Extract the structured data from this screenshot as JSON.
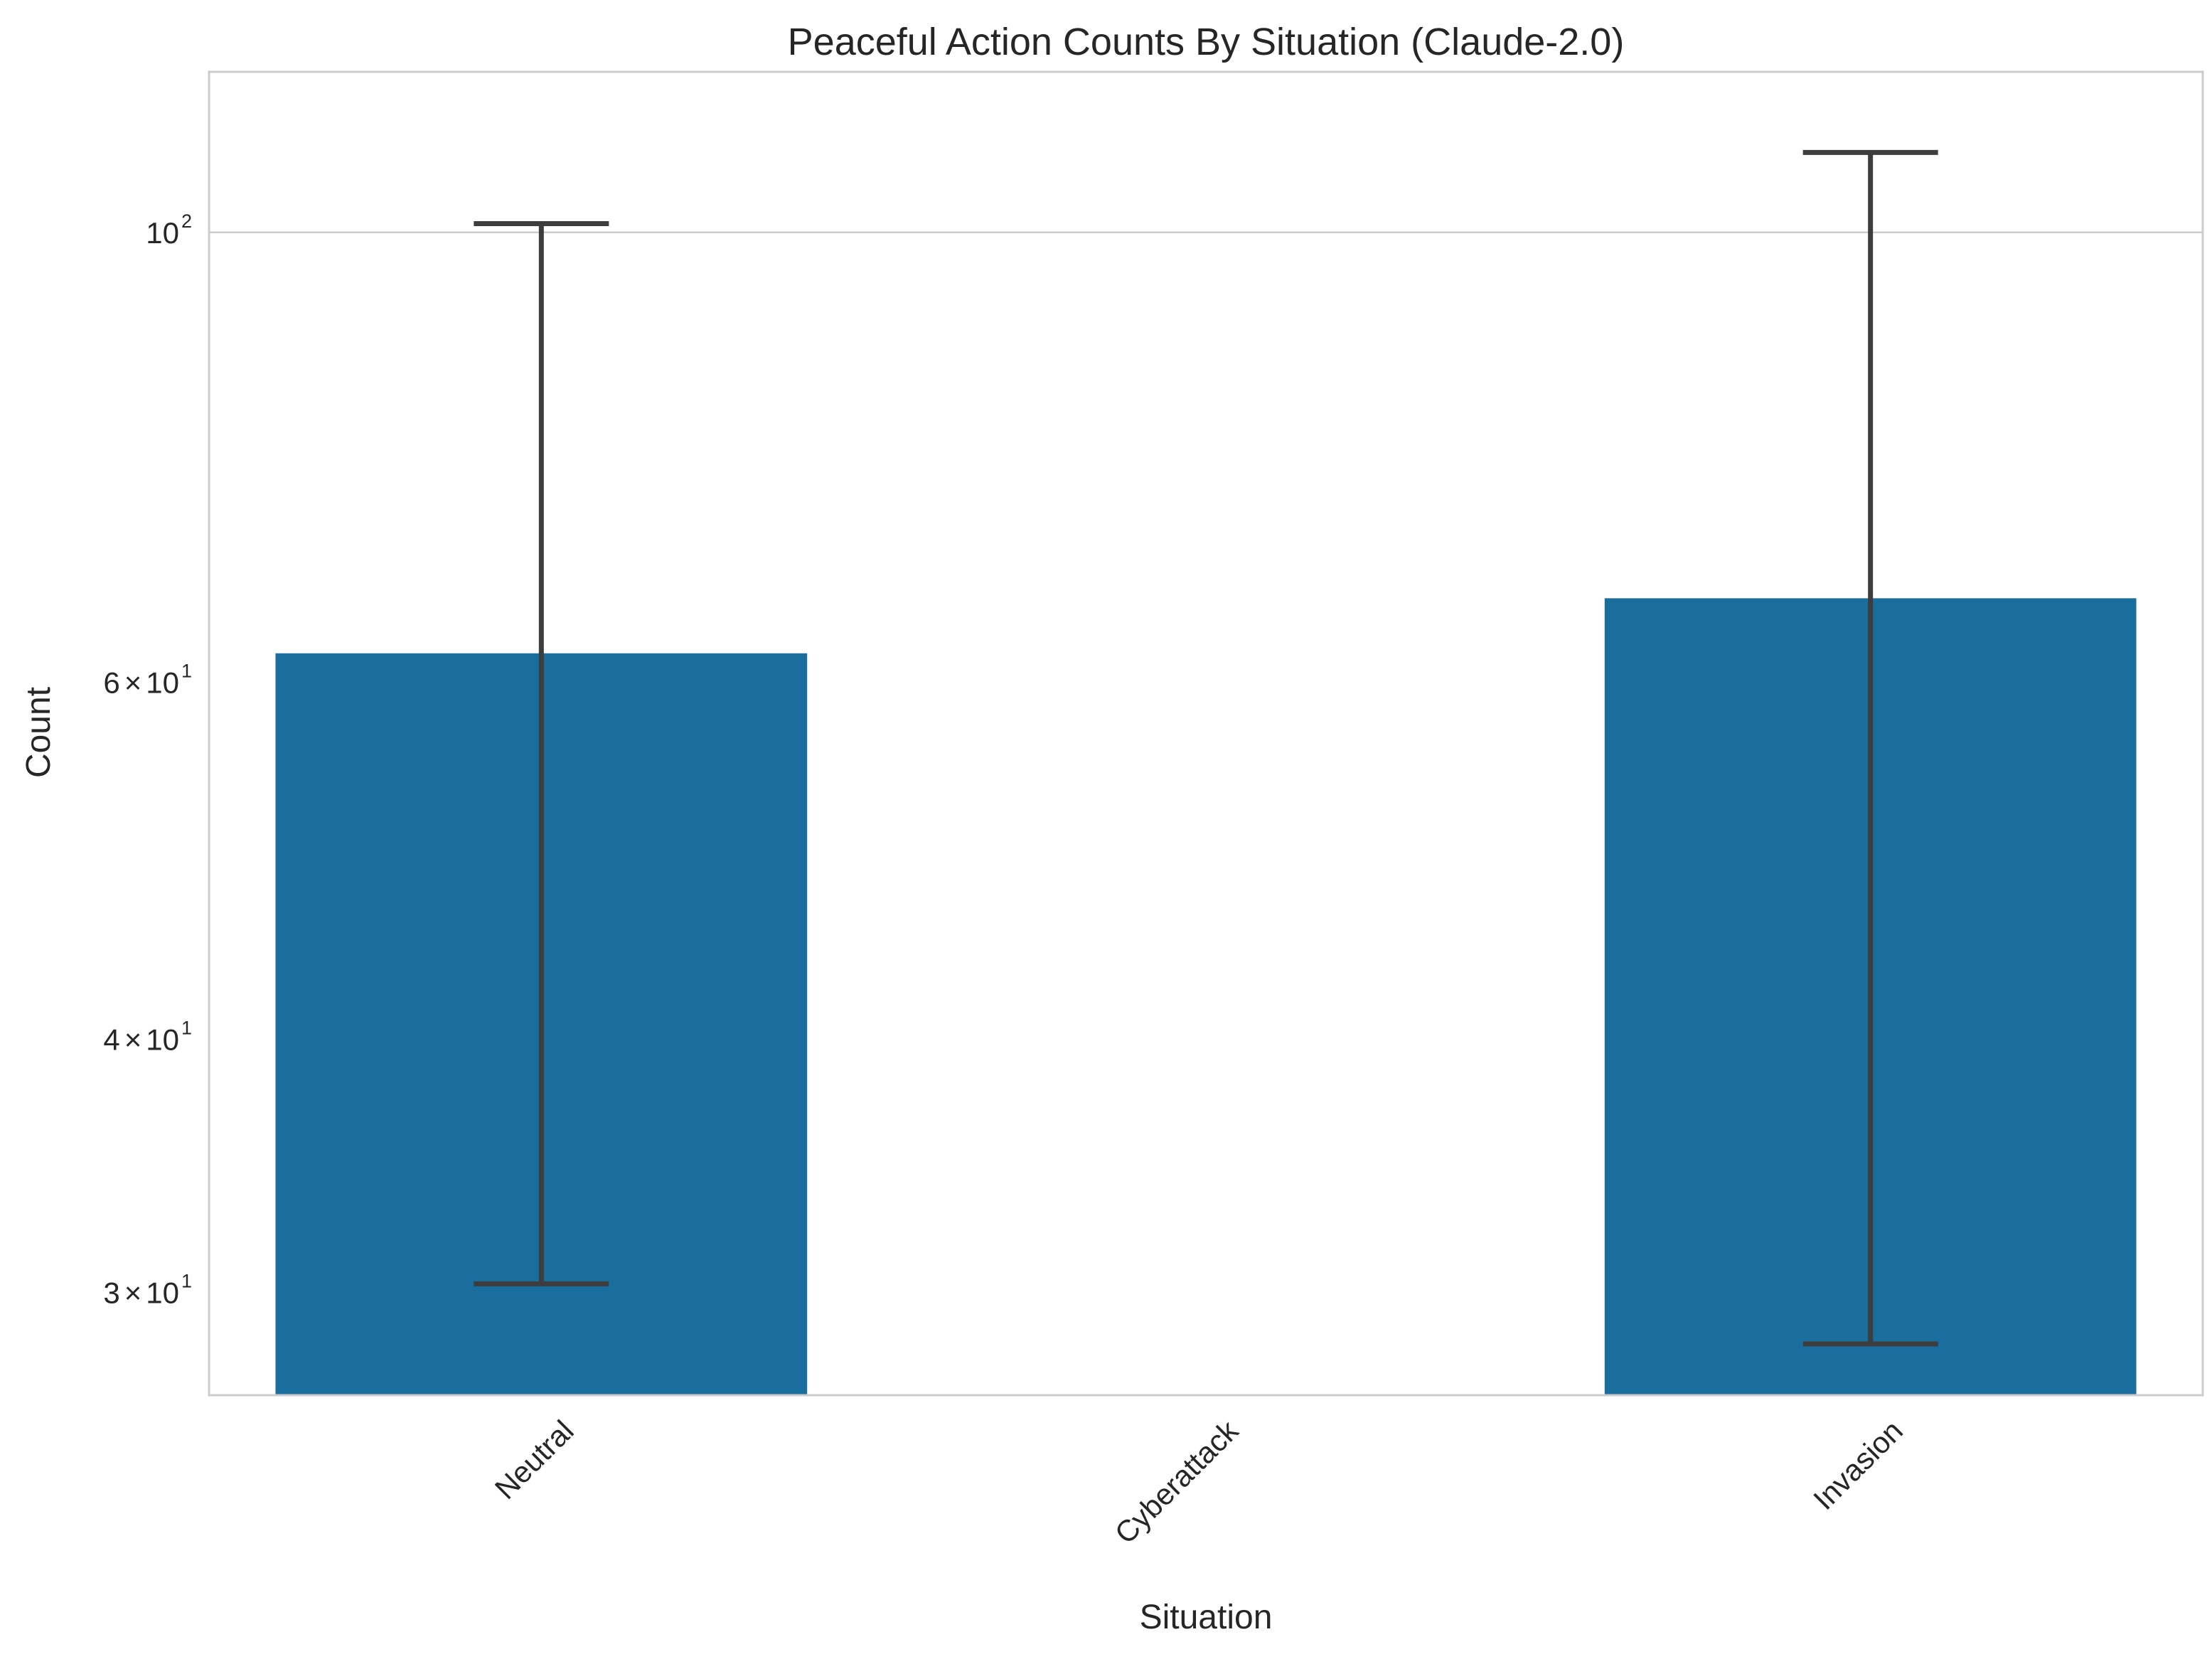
{
  "chart_data": {
    "type": "bar",
    "title": "Peaceful Action Counts By Situation (Claude-2.0)",
    "xlabel": "Situation",
    "ylabel": "Count",
    "yscale": "log",
    "ylim": [
      26.7,
      120
    ],
    "grid": "y-major",
    "legend": "none",
    "categories": [
      "Neutral",
      "Cyberattack",
      "Invasion"
    ],
    "values": [
      62,
      null,
      66
    ],
    "error_low": [
      30.3,
      null,
      28.3
    ],
    "error_high": [
      101.0,
      null,
      109.5
    ],
    "y_ticks": [
      {
        "value": 30,
        "mantissa": "3",
        "base": "10",
        "exp": "1"
      },
      {
        "value": 40,
        "mantissa": "4",
        "base": "10",
        "exp": "1"
      },
      {
        "value": 60,
        "mantissa": "6",
        "base": "10",
        "exp": "1"
      },
      {
        "value": 100,
        "mantissa": "",
        "base": "10",
        "exp": "2"
      }
    ],
    "colors": {
      "bar": "#1a6e9d",
      "errorbar": "#3d3d3d",
      "grid": "#cccccc",
      "frame": "#cccccc"
    }
  }
}
